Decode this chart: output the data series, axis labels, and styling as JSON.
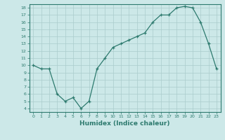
{
  "x": [
    0,
    1,
    2,
    3,
    4,
    5,
    6,
    7,
    8,
    9,
    10,
    11,
    12,
    13,
    14,
    15,
    16,
    17,
    18,
    19,
    20,
    21,
    22,
    23
  ],
  "y": [
    10,
    9.5,
    9.5,
    6,
    5,
    5.5,
    4,
    5,
    9.5,
    11,
    12.5,
    13,
    13.5,
    14,
    14.5,
    16,
    17,
    17,
    18,
    18.2,
    18,
    16,
    13,
    9.5
  ],
  "xlabel": "Humidex (Indice chaleur)",
  "xlim": [
    -0.5,
    23.5
  ],
  "ylim": [
    3.5,
    18.5
  ],
  "yticks": [
    4,
    5,
    6,
    7,
    8,
    9,
    10,
    11,
    12,
    13,
    14,
    15,
    16,
    17,
    18
  ],
  "xticks": [
    0,
    1,
    2,
    3,
    4,
    5,
    6,
    7,
    8,
    9,
    10,
    11,
    12,
    13,
    14,
    15,
    16,
    17,
    18,
    19,
    20,
    21,
    22,
    23
  ],
  "line_color": "#2d7a6e",
  "bg_color": "#cce8e8",
  "grid_color": "#aacccc",
  "spine_color": "#2d7a6e",
  "tick_color": "#2d7a6e",
  "label_color": "#2d7a6e"
}
